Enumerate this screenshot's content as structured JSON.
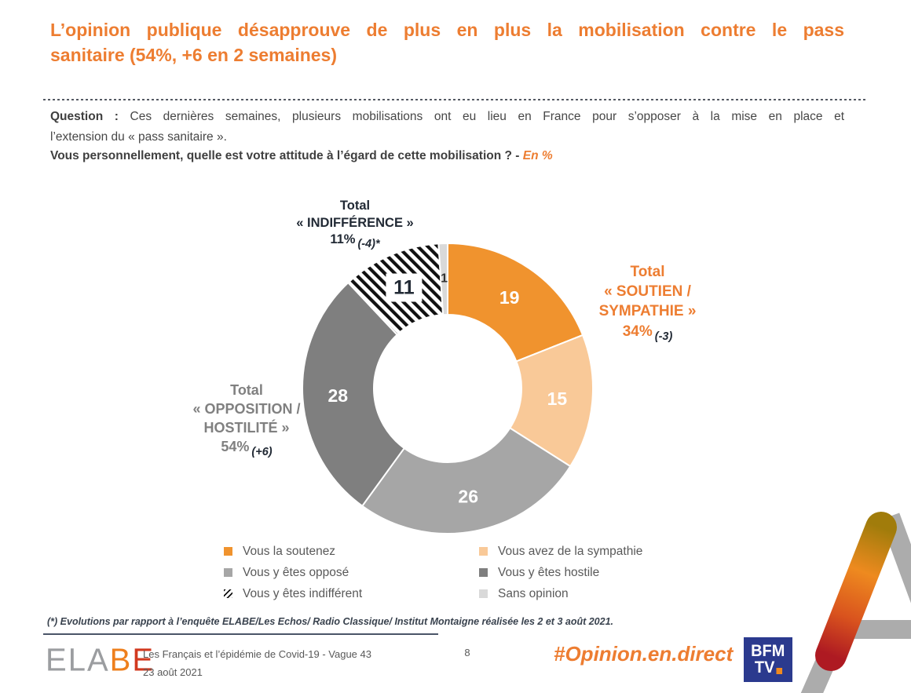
{
  "slide": {
    "title_line1": "L’opinion publique désapprouve de plus en plus la mobilisation contre le pass",
    "title_line2": "sanitaire (54%, +6 en 2 semaines)",
    "question_label": "Question :",
    "question_line1": "Ces dernières semaines, plusieurs mobilisations ont eu lieu en France pour s’opposer à la mise en place et",
    "question_line2": "l’extension du « pass sanitaire ».",
    "sub_question": "Vous personnellement, quelle est votre attitude à l’égard de cette mobilisation ? -",
    "unit_label": "En %"
  },
  "chart_data": {
    "type": "pie",
    "subtype": "donut",
    "direction": "clockwise",
    "start_angle_deg": 0,
    "inner_radius_ratio": 0.51,
    "segments": [
      {
        "label": "Vous la soutenez",
        "value": 19,
        "color": "#F0932E",
        "label_color": "#FFFFFF"
      },
      {
        "label": "Vous avez de la sympathie",
        "value": 15,
        "color": "#F9C998",
        "label_color": "#FFFFFF"
      },
      {
        "label": "Vous y êtes opposé",
        "value": 26,
        "color": "#A6A6A6",
        "label_color": "#FFFFFF"
      },
      {
        "label": "Vous y êtes hostile",
        "value": 28,
        "color": "#7F7F7F",
        "label_color": "#FFFFFF"
      },
      {
        "label": "Vous y êtes indifférent",
        "value": 11,
        "color": "hatch",
        "label_color": "#222A35",
        "label_background": "#FFFFFF"
      },
      {
        "label": "Sans opinion",
        "value": 1,
        "color": "#D9D9D9",
        "label_color": "#333333"
      }
    ],
    "totals": {
      "indifference": {
        "lines": "Total\n« INDIFFÉRENCE »",
        "value": "11%",
        "evolution": "(-4)*"
      },
      "soutien": {
        "lines": "Total\n« SOUTIEN /\nSYMPATHIE »",
        "value": "34%",
        "evolution": "(-3)"
      },
      "opposition": {
        "lines": "Total\n« OPPOSITION /\nHOSTILITÉ »",
        "value": "54%",
        "evolution": "(+6)"
      }
    }
  },
  "legend": {
    "left": [
      {
        "label": "Vous la soutenez",
        "swatch": "#F0932E"
      },
      {
        "label": "Vous y êtes opposé",
        "swatch": "#A6A6A6"
      },
      {
        "label": "Vous y êtes indifférent",
        "swatch": "repeating-linear-gradient(135deg,#111 0 2px,#fff 2px 5px)"
      }
    ],
    "right": [
      {
        "label": "Vous avez de la sympathie",
        "swatch": "#F9C998"
      },
      {
        "label": "Vous y êtes hostile",
        "swatch": "#7F7F7F"
      },
      {
        "label": "Sans opinion",
        "swatch": "#D9D9D9"
      }
    ]
  },
  "footnote": "(*) Evolutions par rapport à l’enquête ELABE/Les Echos/ Radio Classique/ Institut Montaigne réalisée les 2 et 3 août 2021.",
  "footer": {
    "elabe": {
      "letters": [
        {
          "char": "E",
          "color": "#9B9DA0"
        },
        {
          "char": "L",
          "color": "#9B9DA0"
        },
        {
          "char": "A",
          "color": "#9B9DA0"
        },
        {
          "char": "B",
          "color": "#EE7F1D"
        },
        {
          "char": "E",
          "color": "#D2391F"
        }
      ]
    },
    "study_title": "Les Français et l’épidémie de Covid-19 - Vague 43",
    "study_date": "23 août 2021",
    "page_number": "8",
    "hashtag": "#Opinion.en.direct",
    "bfm": {
      "line1": "BFM",
      "line2": "TV"
    }
  },
  "colors": {
    "title_orange": "#ED7D31",
    "opposition_gray": "#808080",
    "dark_navy": "#222A35",
    "bfm_navy": "#2B3A8E",
    "bfm_dot_orange": "#F18A1E"
  }
}
